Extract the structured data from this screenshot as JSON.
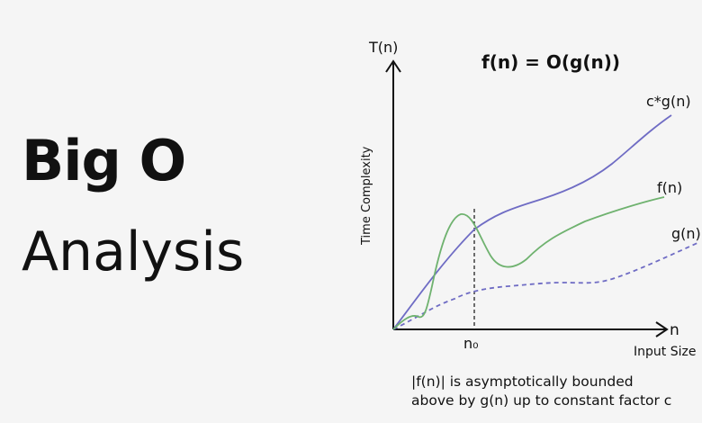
{
  "title": {
    "line1": "Big O",
    "line2": "Analysis"
  },
  "diagram": {
    "equation": "f(n) = O(g(n))",
    "y_axis_symbol": "T(n)",
    "y_axis_label": "Time Complexity",
    "x_axis_symbol": "n",
    "x_axis_label": "Input Size",
    "n0_label": "n₀",
    "curves": [
      {
        "name": "c*g(n)",
        "color": "#6f6cc4",
        "style": "solid"
      },
      {
        "name": "f(n)",
        "color": "#6fb26f",
        "style": "solid"
      },
      {
        "name": "g(n)",
        "color": "#6f6cc4",
        "style": "dashed"
      }
    ]
  },
  "caption": {
    "line1": "|f(n)| is asymptotically bounded",
    "line2": "above by g(n) up to constant factor c"
  }
}
